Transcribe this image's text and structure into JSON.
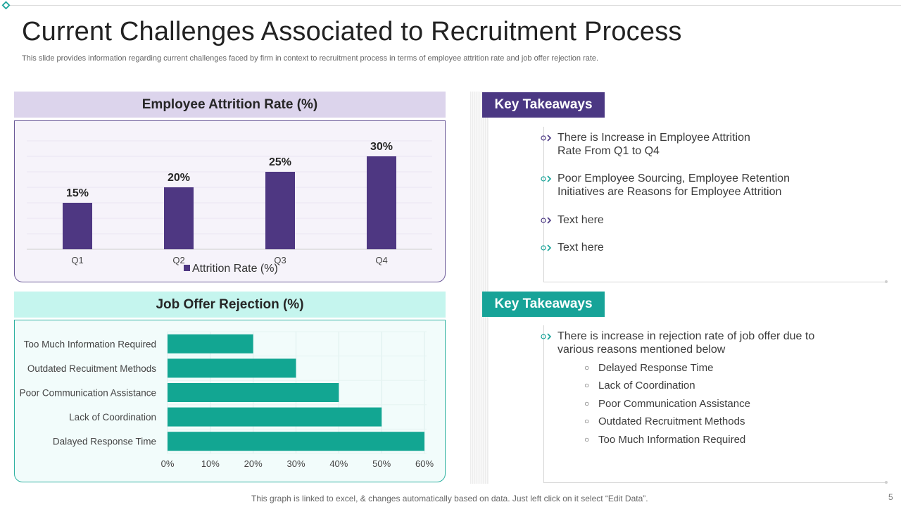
{
  "slide": {
    "title": "Current Challenges Associated to Recruitment Process",
    "subtitle": "This slide provides information regarding current challenges faced by firm in context to recruitment process in terms of employee attrition rate and job offer rejection rate.",
    "footer_note": "This graph is linked to excel, & changes automatically based on data. Just left click on it select “Edit Data”.",
    "page_number": "5"
  },
  "colors": {
    "purple": "#4b3883",
    "bar_purple": "#4e3782",
    "teal": "#17a398",
    "bar_teal": "#12a692"
  },
  "attrition_panel": {
    "header": "Employee Attrition Rate (%)"
  },
  "rejection_panel": {
    "header": "Job Offer Rejection (%)"
  },
  "chart_data": [
    {
      "type": "bar",
      "title": "Employee Attrition Rate (%)",
      "categories": [
        "Q1",
        "Q2",
        "Q3",
        "Q4"
      ],
      "series": [
        {
          "name": "Attrition Rate (%)",
          "values": [
            15,
            20,
            25,
            30
          ]
        }
      ],
      "data_labels": [
        "15%",
        "20%",
        "25%",
        "30%"
      ],
      "legend": "Attrition Rate (%)",
      "legend_position": "bottom",
      "ylim": [
        0,
        35
      ],
      "grid": true,
      "xlabel": "",
      "ylabel": ""
    },
    {
      "type": "bar",
      "orientation": "horizontal",
      "title": "Job Offer Rejection (%)",
      "categories": [
        "Too Much Information Required",
        "Outdated Recuitment Methods",
        "Poor Communication Assistance",
        "Lack of Coordination",
        "Dalayed Response Time"
      ],
      "values": [
        20,
        30,
        40,
        50,
        60
      ],
      "xlim": [
        0,
        60
      ],
      "xticks": [
        "0%",
        "10%",
        "20%",
        "30%",
        "40%",
        "50%",
        "60%"
      ],
      "grid": true,
      "xlabel": "",
      "ylabel": ""
    }
  ],
  "takeaways": [
    {
      "label": "Key Takeaways",
      "points": [
        "There is Increase in Employee Attrition Rate From Q1 to Q4",
        "Poor Employee Sourcing, Employee Retention Initiatives are Reasons for Employee Attrition",
        "Text here",
        "Text here"
      ]
    },
    {
      "label": "Key Takeaways",
      "points": [
        "There is increase in rejection rate of job offer due to various reasons mentioned below"
      ],
      "sub_points": [
        "Delayed Response Time",
        "Lack of Coordination",
        "Poor Communication Assistance",
        "Outdated Recruitment Methods",
        "Too Much Information Required"
      ]
    }
  ]
}
